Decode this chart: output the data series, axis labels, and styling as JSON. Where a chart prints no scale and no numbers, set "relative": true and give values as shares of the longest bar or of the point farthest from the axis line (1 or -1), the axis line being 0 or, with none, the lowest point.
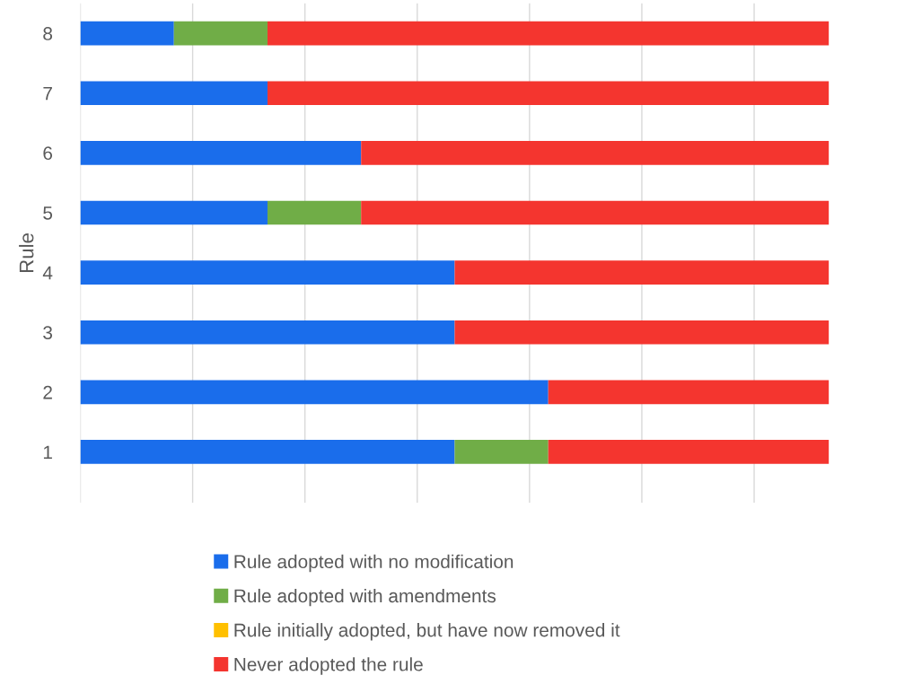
{
  "chart_data": {
    "type": "bar",
    "orientation": "horizontal",
    "stacked": true,
    "relative": true,
    "ylabel": "Rule",
    "categories": [
      "8",
      "7",
      "6",
      "5",
      "4",
      "3",
      "2",
      "1"
    ],
    "series": [
      {
        "name": "Rule adopted with no modification",
        "color": "#1a6deb",
        "values": [
          0.125,
          0.25,
          0.375,
          0.25,
          0.5,
          0.5,
          0.625,
          0.5
        ]
      },
      {
        "name": "Rule adopted with amendments",
        "color": "#70ad47",
        "values": [
          0.125,
          0,
          0,
          0.125,
          0,
          0,
          0,
          0.125
        ]
      },
      {
        "name": "Rule initially adopted, but have now removed it",
        "color": "#ffc000",
        "values": [
          0,
          0,
          0,
          0,
          0,
          0,
          0,
          0
        ]
      },
      {
        "name": "Never adopted the rule",
        "color": "#f4352f",
        "values": [
          0.75,
          0.75,
          0.625,
          0.625,
          0.5,
          0.5,
          0.375,
          0.375
        ]
      }
    ],
    "grid": "x",
    "legend": "bottom",
    "tick_labels": "y"
  }
}
